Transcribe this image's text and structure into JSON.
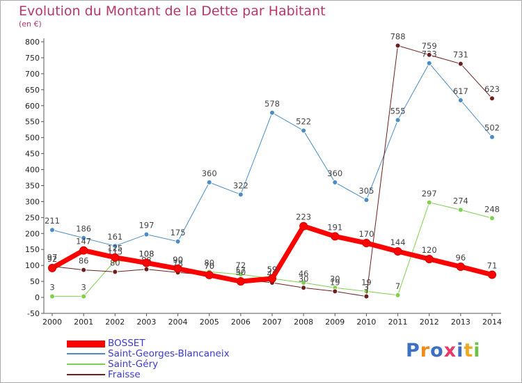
{
  "title": "Evolution du Montant de la Dette par Habitant",
  "subtitle": "(en €)",
  "brand": {
    "letters": [
      "P",
      "r",
      "o",
      "x",
      "i",
      "t",
      "i"
    ],
    "colors": [
      "#3d6fc2",
      "#f08a18",
      "#3d6fc2",
      "#e83a6a",
      "#3d6fc2",
      "#f0a820",
      "#6cc04a"
    ]
  },
  "chart_data": {
    "type": "line",
    "x": [
      "2000",
      "2001",
      "2002",
      "2003",
      "2004",
      "2005",
      "2006",
      "2007",
      "2008",
      "2009",
      "2010",
      "2011",
      "2012",
      "2013",
      "2014"
    ],
    "ylim": [
      -50,
      800
    ],
    "yticks": [
      "-50",
      "0",
      "50",
      "100",
      "150",
      "200",
      "250",
      "300",
      "350",
      "400",
      "450",
      "500",
      "550",
      "600",
      "650",
      "700",
      "750",
      "800"
    ],
    "grid": false,
    "legend_position": "bottom-left",
    "series": [
      {
        "name": "Saint-Georges-Blancaneix",
        "color": "#4a8cc8",
        "width": 1,
        "values": [
          211,
          186,
          161,
          197,
          175,
          360,
          322,
          578,
          522,
          360,
          305,
          555,
          733,
          617,
          502
        ],
        "labels": [
          "211",
          "186",
          "161",
          "197",
          "175",
          "360",
          "322",
          "578",
          "522",
          "360",
          "305",
          "555",
          "733",
          "617",
          "502"
        ]
      },
      {
        "name": "Saint-Géry",
        "color": "#7fd04f",
        "width": 1,
        "values": [
          3,
          3,
          115,
          108,
          90,
          80,
          72,
          59,
          46,
          30,
          19,
          7,
          297,
          274,
          248
        ],
        "labels": [
          "3",
          "3",
          "115",
          "108",
          "90",
          "80",
          "72",
          "59",
          "46",
          "30",
          "19",
          "7",
          "297",
          "274",
          "248"
        ]
      },
      {
        "name": "Fraisse",
        "color": "#6b1f1f",
        "width": 1,
        "values": [
          97,
          86,
          80,
          88,
          78,
          70,
          57,
          46,
          30,
          19,
          3,
          788,
          759,
          731,
          623
        ],
        "labels": [
          "97",
          "86",
          "80",
          "88",
          "78",
          "70",
          "57",
          "46",
          "30",
          "19",
          "3",
          "788",
          "759",
          "731",
          "623"
        ]
      },
      {
        "name": "BOSSET",
        "color": "#ff0000",
        "width": 7,
        "values": [
          92,
          147,
          125,
          108,
          90,
          70,
          50,
          59,
          223,
          191,
          170,
          144,
          120,
          96,
          71
        ],
        "labels": [
          "92",
          "147",
          "125",
          "108",
          "90",
          "70",
          "50",
          "59",
          "223",
          "191",
          "170",
          "144",
          "120",
          "96",
          "71"
        ]
      }
    ]
  }
}
